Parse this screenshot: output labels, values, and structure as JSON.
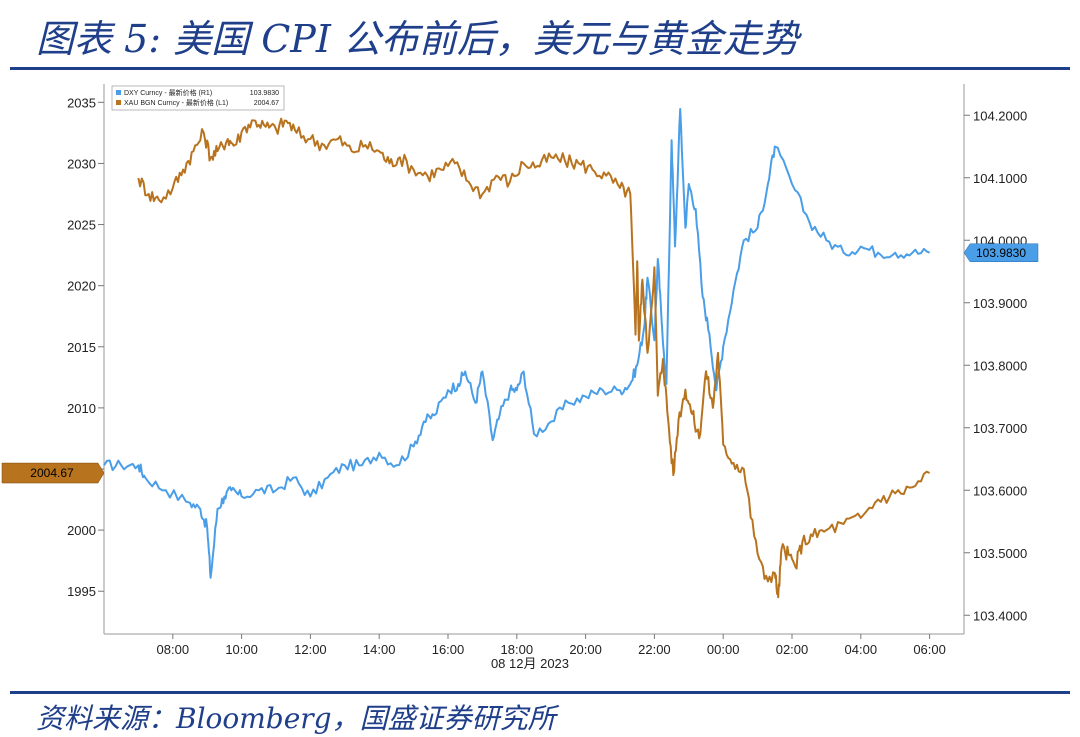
{
  "page": {
    "title": "图表 5:  美国 CPI 公布前后，美元与黄金走势",
    "source": "资料来源：Bloomberg，国盛证券研究所"
  },
  "chart_data": {
    "type": "line",
    "title": "",
    "x_axis": {
      "ticks": [
        "08:00",
        "10:00",
        "12:00",
        "14:00",
        "16:00",
        "18:00",
        "20:00",
        "22:00",
        "00:00",
        "02:00",
        "04:00",
        "06:00"
      ],
      "tick_hours": [
        8,
        10,
        12,
        14,
        16,
        18,
        20,
        22,
        24,
        26,
        28,
        30
      ],
      "date_label": "08 12月 2023",
      "range_hours": [
        6,
        31
      ]
    },
    "left_axis": {
      "ticks": [
        "2035",
        "2030",
        "2025",
        "2020",
        "2015",
        "2010",
        "2005",
        "2000",
        "1995"
      ],
      "tick_values": [
        2035,
        2030,
        2025,
        2020,
        2015,
        2010,
        2005,
        2000,
        1995
      ],
      "range": [
        1991.5,
        2036.5
      ]
    },
    "right_axis": {
      "ticks": [
        "104.2000",
        "104.1000",
        "104.0000",
        "103.9000",
        "103.8000",
        "103.7000",
        "103.6000",
        "103.5000",
        "103.4000"
      ],
      "tick_values": [
        104.2,
        104.1,
        104.0,
        103.9,
        103.8,
        103.7,
        103.6,
        103.5,
        103.4
      ],
      "range": [
        103.37,
        104.25
      ]
    },
    "legend": {
      "position": "top-left",
      "entries": [
        {
          "label": "DXY Curncy - 最新价格 (R1)",
          "value": "103.9830",
          "color": "#4a9ee8"
        },
        {
          "label": "XAU BGN Curncy - 最新价格 (L1)",
          "value": "2004.67",
          "color": "#b8731f"
        }
      ]
    },
    "last_value_tags": {
      "left": "2004.67",
      "right": "103.9830"
    },
    "series": [
      {
        "name": "DXY Curncy",
        "axis": "right",
        "color": "#4a9ee8",
        "x": [
          6.0,
          6.5,
          7.0,
          7.2,
          7.8,
          8.5,
          8.8,
          9.0,
          9.1,
          9.3,
          9.5,
          9.7,
          10.0,
          10.5,
          11.0,
          11.5,
          12.0,
          12.5,
          13.0,
          13.5,
          14.0,
          14.5,
          15.0,
          15.3,
          15.6,
          16.0,
          16.3,
          16.5,
          16.8,
          17.0,
          17.3,
          17.5,
          17.8,
          18.0,
          18.2,
          18.5,
          19.0,
          19.5,
          20.0,
          20.5,
          21.0,
          21.3,
          21.5,
          21.7,
          21.8,
          22.0,
          22.1,
          22.2,
          22.35,
          22.5,
          22.6,
          22.75,
          22.9,
          23.0,
          23.2,
          23.4,
          23.6,
          23.8,
          24.0,
          24.3,
          24.6,
          25.0,
          25.3,
          25.5,
          26.0,
          26.5,
          27.0,
          27.5,
          28.0,
          28.5,
          29.0,
          29.5,
          30.0
        ],
        "y": [
          103.64,
          103.64,
          103.64,
          103.62,
          103.6,
          103.58,
          103.57,
          103.54,
          103.46,
          103.57,
          103.59,
          103.6,
          103.59,
          103.6,
          103.6,
          103.62,
          103.59,
          103.62,
          103.64,
          103.64,
          103.66,
          103.64,
          103.67,
          103.71,
          103.72,
          103.76,
          103.77,
          103.79,
          103.74,
          103.79,
          103.68,
          103.72,
          103.76,
          103.76,
          103.79,
          103.69,
          103.71,
          103.74,
          103.75,
          103.76,
          103.76,
          103.77,
          103.8,
          103.86,
          103.94,
          103.84,
          103.97,
          103.88,
          103.77,
          104.16,
          103.99,
          104.21,
          104.02,
          104.09,
          104.05,
          103.91,
          103.85,
          103.76,
          103.83,
          103.92,
          104.0,
          104.02,
          104.09,
          104.15,
          104.09,
          104.03,
          104.0,
          103.98,
          103.99,
          103.98,
          103.98,
          103.98,
          103.98
        ]
      },
      {
        "name": "XAU BGN Curncy",
        "axis": "left",
        "color": "#b8731f",
        "x": [
          7.0,
          7.3,
          7.6,
          8.0,
          8.3,
          8.6,
          8.9,
          9.1,
          9.3,
          9.6,
          9.8,
          10.1,
          10.4,
          10.7,
          11.0,
          11.3,
          11.6,
          12.0,
          12.4,
          12.8,
          13.2,
          13.6,
          14.0,
          14.3,
          14.6,
          15.0,
          15.4,
          15.8,
          16.2,
          16.6,
          17.0,
          17.4,
          17.8,
          18.2,
          18.6,
          19.0,
          19.4,
          19.8,
          20.2,
          20.6,
          21.0,
          21.3,
          21.45,
          21.5,
          21.55,
          21.65,
          21.8,
          22.0,
          22.1,
          22.25,
          22.4,
          22.55,
          22.7,
          22.9,
          23.1,
          23.3,
          23.5,
          23.7,
          23.85,
          24.0,
          24.3,
          24.6,
          24.9,
          25.2,
          25.5,
          25.6,
          25.7,
          25.9,
          26.1,
          26.3,
          26.6,
          27.0,
          27.5,
          28.0,
          28.5,
          29.0,
          29.5,
          30.0
        ],
        "y": [
          2028.8,
          2027.5,
          2027.0,
          2028.0,
          2029.5,
          2031.0,
          2032.5,
          2030.5,
          2031.0,
          2032.0,
          2031.5,
          2033.0,
          2033.5,
          2033.0,
          2032.8,
          2033.5,
          2032.5,
          2032.0,
          2031.5,
          2032.0,
          2031.0,
          2031.5,
          2031.0,
          2030.0,
          2030.5,
          2029.5,
          2029.0,
          2029.5,
          2030.0,
          2028.5,
          2027.5,
          2029.0,
          2028.5,
          2030.0,
          2029.8,
          2030.5,
          2030.2,
          2030.0,
          2029.5,
          2029.0,
          2028.0,
          2027.5,
          2016.0,
          2022.0,
          2015.5,
          2020.5,
          2014.5,
          2021.5,
          2011.0,
          2014.0,
          2009.0,
          2004.5,
          2009.0,
          2011.5,
          2009.5,
          2007.5,
          2013.0,
          2010.0,
          2014.5,
          2007.0,
          2005.5,
          2005.0,
          1999.5,
          1996.0,
          1996.5,
          1994.5,
          1998.5,
          1998.0,
          1997.0,
          1999.0,
          1999.5,
          2000.0,
          2000.5,
          2001.0,
          2002.5,
          2003.0,
          2003.5,
          2004.67
        ]
      }
    ]
  }
}
